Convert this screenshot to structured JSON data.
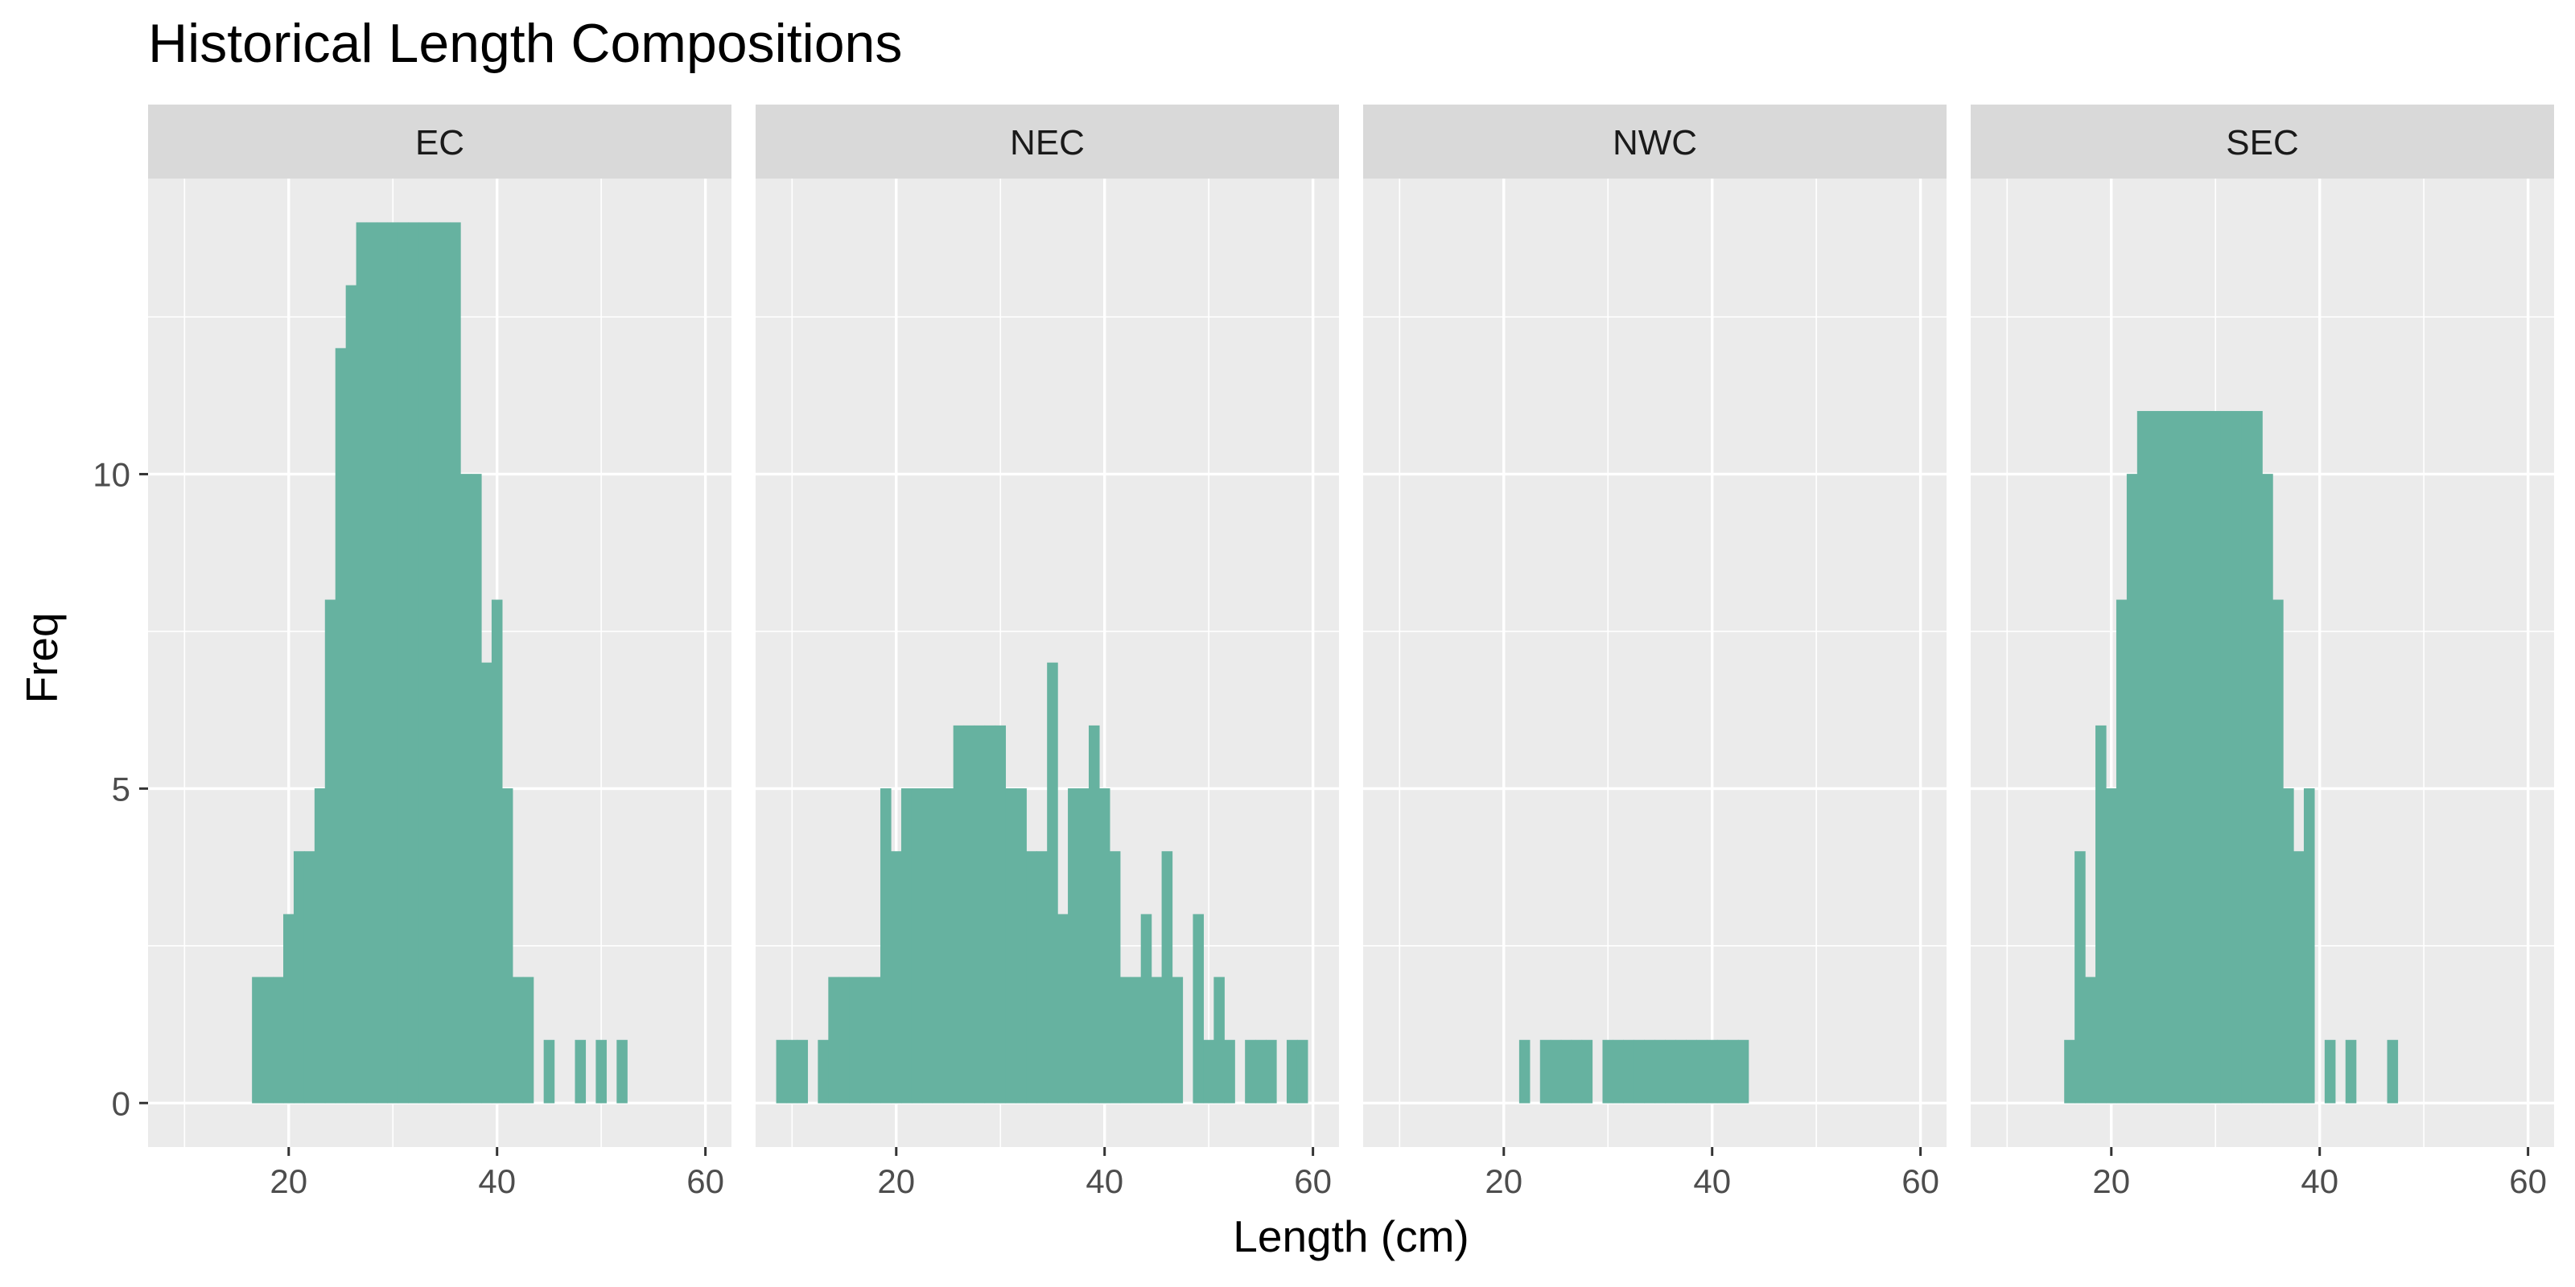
{
  "chart_data": {
    "type": "bar",
    "title": "Historical Length Compositions",
    "xlabel": "Length (cm)",
    "ylabel": "Freq",
    "xlim": [
      6.5,
      62.5
    ],
    "ylim": [
      -0.7,
      14.7
    ],
    "x_ticks": [
      20,
      40,
      60
    ],
    "y_ticks": [
      0,
      5,
      10
    ],
    "grid": true,
    "bar_color": "#66b2a0",
    "panel_bg": "#ebebeb",
    "strip_bg": "#d9d9d9",
    "bin_width": 1,
    "facets": [
      {
        "label": "EC",
        "x": [
          17,
          18,
          19,
          20,
          21,
          22,
          23,
          24,
          25,
          26,
          27,
          28,
          29,
          30,
          31,
          32,
          33,
          34,
          35,
          36,
          37,
          38,
          39,
          40,
          41,
          42,
          43,
          45,
          48,
          50,
          52
        ],
        "values": [
          2,
          2,
          2,
          3,
          4,
          4,
          5,
          8,
          12,
          13,
          14,
          14,
          14,
          14,
          14,
          14,
          14,
          14,
          14,
          14,
          10,
          10,
          7,
          8,
          5,
          2,
          2,
          1,
          1,
          1,
          1
        ]
      },
      {
        "label": "NEC",
        "x": [
          9,
          10,
          11,
          13,
          14,
          15,
          16,
          17,
          18,
          19,
          20,
          21,
          22,
          23,
          24,
          25,
          26,
          27,
          28,
          29,
          30,
          31,
          32,
          33,
          34,
          35,
          36,
          37,
          38,
          39,
          40,
          41,
          42,
          43,
          44,
          45,
          46,
          47,
          49,
          50,
          51,
          52,
          54,
          55,
          56,
          58,
          59
        ],
        "values": [
          1,
          1,
          1,
          1,
          2,
          2,
          2,
          2,
          2,
          5,
          4,
          5,
          5,
          5,
          5,
          5,
          6,
          6,
          6,
          6,
          6,
          5,
          5,
          4,
          4,
          7,
          3,
          5,
          5,
          6,
          5,
          4,
          2,
          2,
          3,
          2,
          4,
          2,
          3,
          1,
          2,
          1,
          1,
          1,
          1,
          1,
          1
        ]
      },
      {
        "label": "NWC",
        "x": [
          22,
          24,
          25,
          26,
          27,
          28,
          30,
          31,
          32,
          33,
          34,
          35,
          36,
          37,
          38,
          39,
          40,
          41,
          42,
          43
        ],
        "values": [
          1,
          1,
          1,
          1,
          1,
          1,
          1,
          1,
          1,
          1,
          1,
          1,
          1,
          1,
          1,
          1,
          1,
          1,
          1,
          1
        ]
      },
      {
        "label": "SEC",
        "x": [
          16,
          17,
          18,
          19,
          20,
          21,
          22,
          23,
          24,
          25,
          26,
          27,
          28,
          29,
          30,
          31,
          32,
          33,
          34,
          35,
          36,
          37,
          38,
          39,
          41,
          43,
          47
        ],
        "values": [
          1,
          4,
          2,
          6,
          5,
          8,
          10,
          11,
          11,
          11,
          11,
          11,
          11,
          11,
          11,
          11,
          11,
          11,
          11,
          10,
          8,
          5,
          4,
          5,
          1,
          1,
          1
        ]
      }
    ]
  }
}
